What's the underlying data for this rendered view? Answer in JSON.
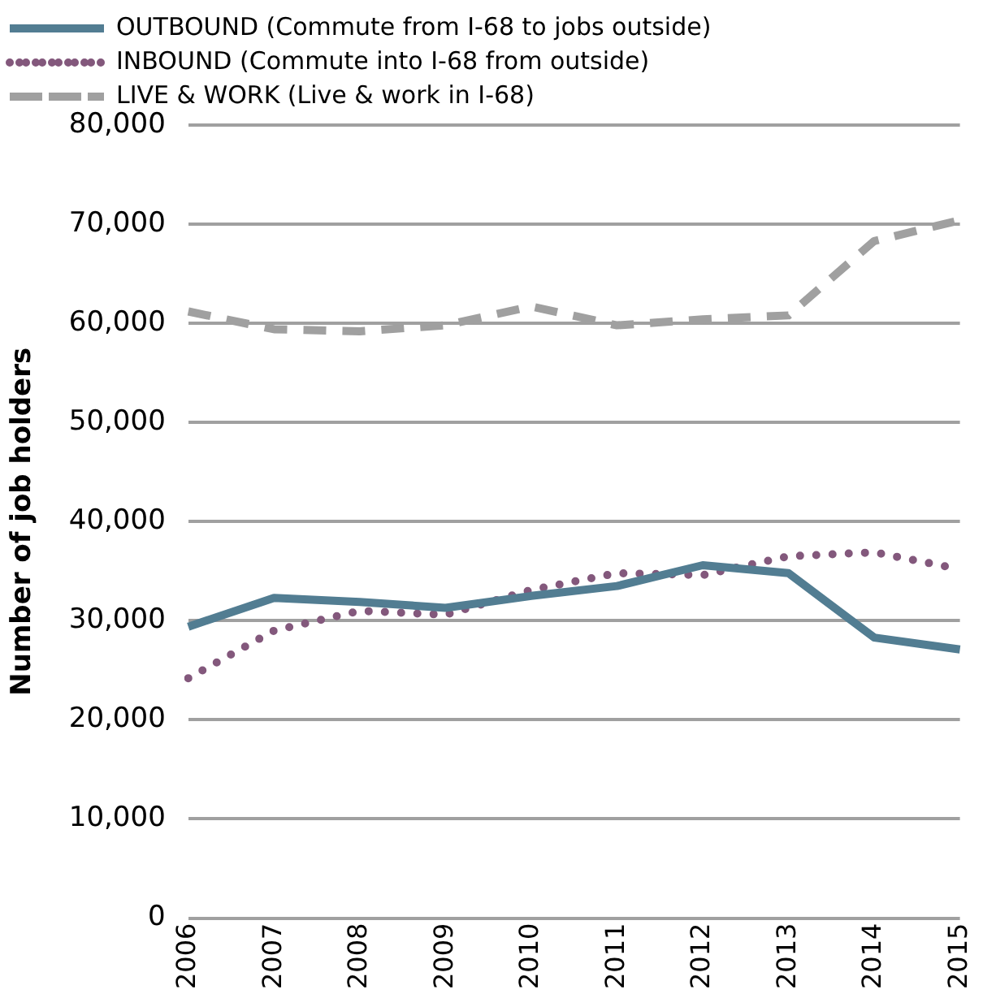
{
  "chart_data": {
    "type": "line",
    "ylabel": "Number of job holders",
    "categories": [
      "2006",
      "2007",
      "2008",
      "2009",
      "2010",
      "2011",
      "2012",
      "2013",
      "2014",
      "2015"
    ],
    "series": [
      {
        "name": "OUTBOUND (Commute from I-68 to jobs outside)",
        "color": "#527d92",
        "line_style": "solid",
        "values": [
          29400,
          32300,
          31900,
          31300,
          32500,
          33500,
          35600,
          34800,
          28300,
          27100
        ]
      },
      {
        "name": "INBOUND (Commute into I-68 from outside)",
        "color": "#83587c",
        "line_style": "dotted",
        "values": [
          24200,
          29000,
          31000,
          30600,
          33100,
          34800,
          34600,
          36500,
          36900,
          35200
        ]
      },
      {
        "name": "LIVE & WORK (Live & work in I-68)",
        "color": "#a0a0a0",
        "line_style": "dashed",
        "values": [
          61200,
          59400,
          59200,
          59800,
          61700,
          59800,
          60400,
          60800,
          68300,
          70400
        ]
      }
    ],
    "ylim": [
      0,
      80000
    ],
    "yticks": [
      0,
      {
        "value": 10000,
        "label": "10,000"
      },
      {
        "value": 20000,
        "label": "20,000"
      },
      {
        "value": 30000,
        "label": "30,000"
      },
      {
        "value": 40000,
        "label": "40,000"
      },
      {
        "value": 50000,
        "label": "50,000"
      },
      {
        "value": 60000,
        "label": "60,000"
      },
      {
        "value": 70000,
        "label": "70,000"
      },
      {
        "value": 80000,
        "label": "80,000"
      }
    ],
    "grid": "y",
    "legend": "top",
    "marker": "none"
  }
}
